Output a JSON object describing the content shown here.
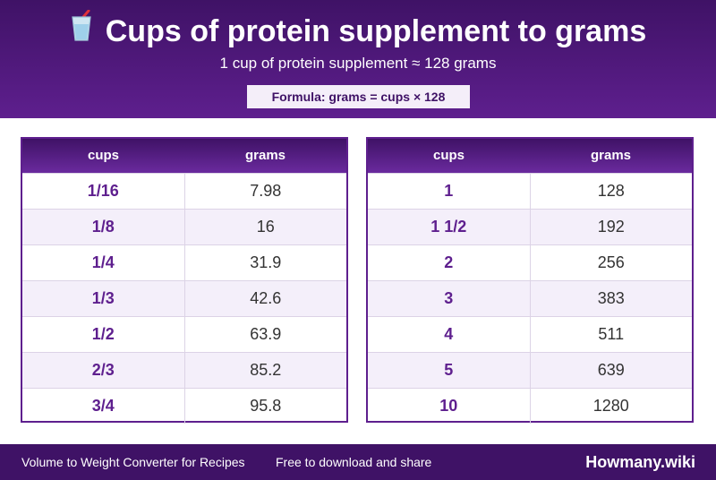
{
  "header": {
    "title": "Cups of protein supplement to grams",
    "subtitle": "1 cup of protein supplement ≈ 128 grams",
    "formula": "Formula: grams = cups × 128",
    "icon": "cup-with-straw-icon"
  },
  "tables": [
    {
      "col_unit": "cups",
      "col_grams": "grams",
      "rows": [
        {
          "cups": "1/16",
          "grams": "7.98"
        },
        {
          "cups": "1/8",
          "grams": "16"
        },
        {
          "cups": "1/4",
          "grams": "31.9"
        },
        {
          "cups": "1/3",
          "grams": "42.6"
        },
        {
          "cups": "1/2",
          "grams": "63.9"
        },
        {
          "cups": "2/3",
          "grams": "85.2"
        },
        {
          "cups": "3/4",
          "grams": "95.8"
        }
      ]
    },
    {
      "col_unit": "cups",
      "col_grams": "grams",
      "rows": [
        {
          "cups": "1",
          "grams": "128"
        },
        {
          "cups": "1 1/2",
          "grams": "192"
        },
        {
          "cups": "2",
          "grams": "256"
        },
        {
          "cups": "3",
          "grams": "383"
        },
        {
          "cups": "4",
          "grams": "511"
        },
        {
          "cups": "5",
          "grams": "639"
        },
        {
          "cups": "10",
          "grams": "1280"
        }
      ]
    }
  ],
  "footer": {
    "left": "Volume to Weight Converter for Recipes",
    "mid": "Free to download and share",
    "brand": "Howmany.wiki"
  },
  "colors": {
    "accent": "#5e1f8e",
    "header_dark": "#3f1266",
    "row_alt": "#f4effa"
  }
}
